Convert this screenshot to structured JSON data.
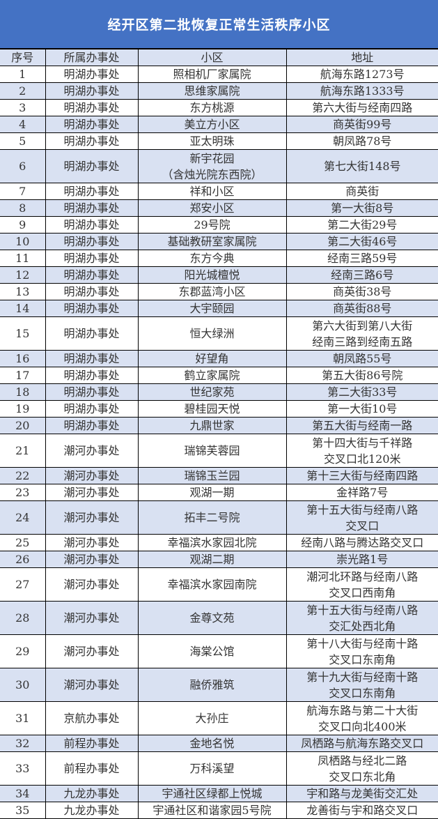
{
  "title": "经开区第二批恢复正常生活秩序小区",
  "colors": {
    "title_bg": "#4472C4",
    "stripe": "#D9E1F2"
  },
  "headers": [
    "序号",
    "所属办事处",
    "小区",
    "地址"
  ],
  "rows": [
    {
      "no": "1",
      "office": "明湖办事处",
      "name": "照相机厂家属院",
      "addr": "航海东路1273号"
    },
    {
      "no": "2",
      "office": "明湖办事处",
      "name": "思维家属院",
      "addr": "航海东路1333号"
    },
    {
      "no": "3",
      "office": "明湖办事处",
      "name": "东方桃源",
      "addr": "第六大街与经南四路"
    },
    {
      "no": "4",
      "office": "明湖办事处",
      "name": "美立方小区",
      "addr": "商英街99号"
    },
    {
      "no": "5",
      "office": "明湖办事处",
      "name": "亚太明珠",
      "addr": "朝凤路78号"
    },
    {
      "no": "6",
      "office": "明湖办事处",
      "name": "新宇花园\n（含烛光院东西院）",
      "addr": "第七大街148号"
    },
    {
      "no": "7",
      "office": "明湖办事处",
      "name": "祥和小区",
      "addr": "商英街"
    },
    {
      "no": "8",
      "office": "明湖办事处",
      "name": "郑安小区",
      "addr": "第一大街8号"
    },
    {
      "no": "9",
      "office": "明湖办事处",
      "name": "29号院",
      "addr": "第二大街29号"
    },
    {
      "no": "10",
      "office": "明湖办事处",
      "name": "基础教研室家属院",
      "addr": "第二大街46号"
    },
    {
      "no": "11",
      "office": "明湖办事处",
      "name": "东方今典",
      "addr": "经南三路59号"
    },
    {
      "no": "12",
      "office": "明湖办事处",
      "name": "阳光城檀悦",
      "addr": "经南三路6号"
    },
    {
      "no": "13",
      "office": "明湖办事处",
      "name": "东郡蓝湾小区",
      "addr": "商英街38号"
    },
    {
      "no": "14",
      "office": "明湖办事处",
      "name": "大宇颐园",
      "addr": "商英街88号"
    },
    {
      "no": "15",
      "office": "明湖办事处",
      "name": "恒大绿洲",
      "addr": "第六大街到第八大街\n经南三路到经南五路"
    },
    {
      "no": "16",
      "office": "明湖办事处",
      "name": "好望角",
      "addr": "朝凤路55号"
    },
    {
      "no": "17",
      "office": "明湖办事处",
      "name": "鹤立家属院",
      "addr": "第五大街86号院"
    },
    {
      "no": "18",
      "office": "明湖办事处",
      "name": "世纪家苑",
      "addr": "第二大街33号"
    },
    {
      "no": "19",
      "office": "明湖办事处",
      "name": "碧桂园天悦",
      "addr": "第一大街10号"
    },
    {
      "no": "20",
      "office": "明湖办事处",
      "name": "九鼎世家",
      "addr": "第五大街与经南一路"
    },
    {
      "no": "21",
      "office": "潮河办事处",
      "name": "瑞锦芙蓉园",
      "addr": "第十四大街与千祥路\n交叉口北120米"
    },
    {
      "no": "22",
      "office": "潮河办事处",
      "name": "瑞锦玉兰园",
      "addr": "第十三大街与经南四路"
    },
    {
      "no": "23",
      "office": "潮河办事处",
      "name": "观湖一期",
      "addr": "金祥路7号"
    },
    {
      "no": "24",
      "office": "潮河办事处",
      "name": "拓丰二号院",
      "addr": "第十五大街与经南八路\n交叉口"
    },
    {
      "no": "25",
      "office": "潮河办事处",
      "name": "幸福滨水家园北院",
      "addr": "经南八路与腾达路交叉口"
    },
    {
      "no": "26",
      "office": "潮河办事处",
      "name": "观湖二期",
      "addr": "崇光路1号"
    },
    {
      "no": "27",
      "office": "潮河办事处",
      "name": "幸福滨水家园南院",
      "addr": "潮河北环路与经南八路\n交叉口西南角"
    },
    {
      "no": "28",
      "office": "潮河办事处",
      "name": "金尊文苑",
      "addr": "第十五大街与经南八路\n交汇处西北角"
    },
    {
      "no": "29",
      "office": "潮河办事处",
      "name": "海棠公馆",
      "addr": "第十八大街与经南十路\n交叉口东南角"
    },
    {
      "no": "30",
      "office": "潮河办事处",
      "name": "融侨雅筑",
      "addr": "第十九大街与经南十路\n交叉口东南角"
    },
    {
      "no": "31",
      "office": "京航办事处",
      "name": "大孙庄",
      "addr": "航海东路与第二十大街\n交叉口向北400米"
    },
    {
      "no": "32",
      "office": "前程办事处",
      "name": "金地名悦",
      "addr": "凤栖路与航海东路交叉口"
    },
    {
      "no": "33",
      "office": "前程办事处",
      "name": "万科溪望",
      "addr": "凤栖路与经北二路\n交叉口东北角"
    },
    {
      "no": "34",
      "office": "九龙办事处",
      "name": "宇通社区绿都上悦城",
      "addr": "宇和路与龙美街交汇处"
    },
    {
      "no": "35",
      "office": "九龙办事处",
      "name": "宇通社区和谐家园5号院",
      "addr": "龙善街与宇和路交叉口"
    }
  ]
}
